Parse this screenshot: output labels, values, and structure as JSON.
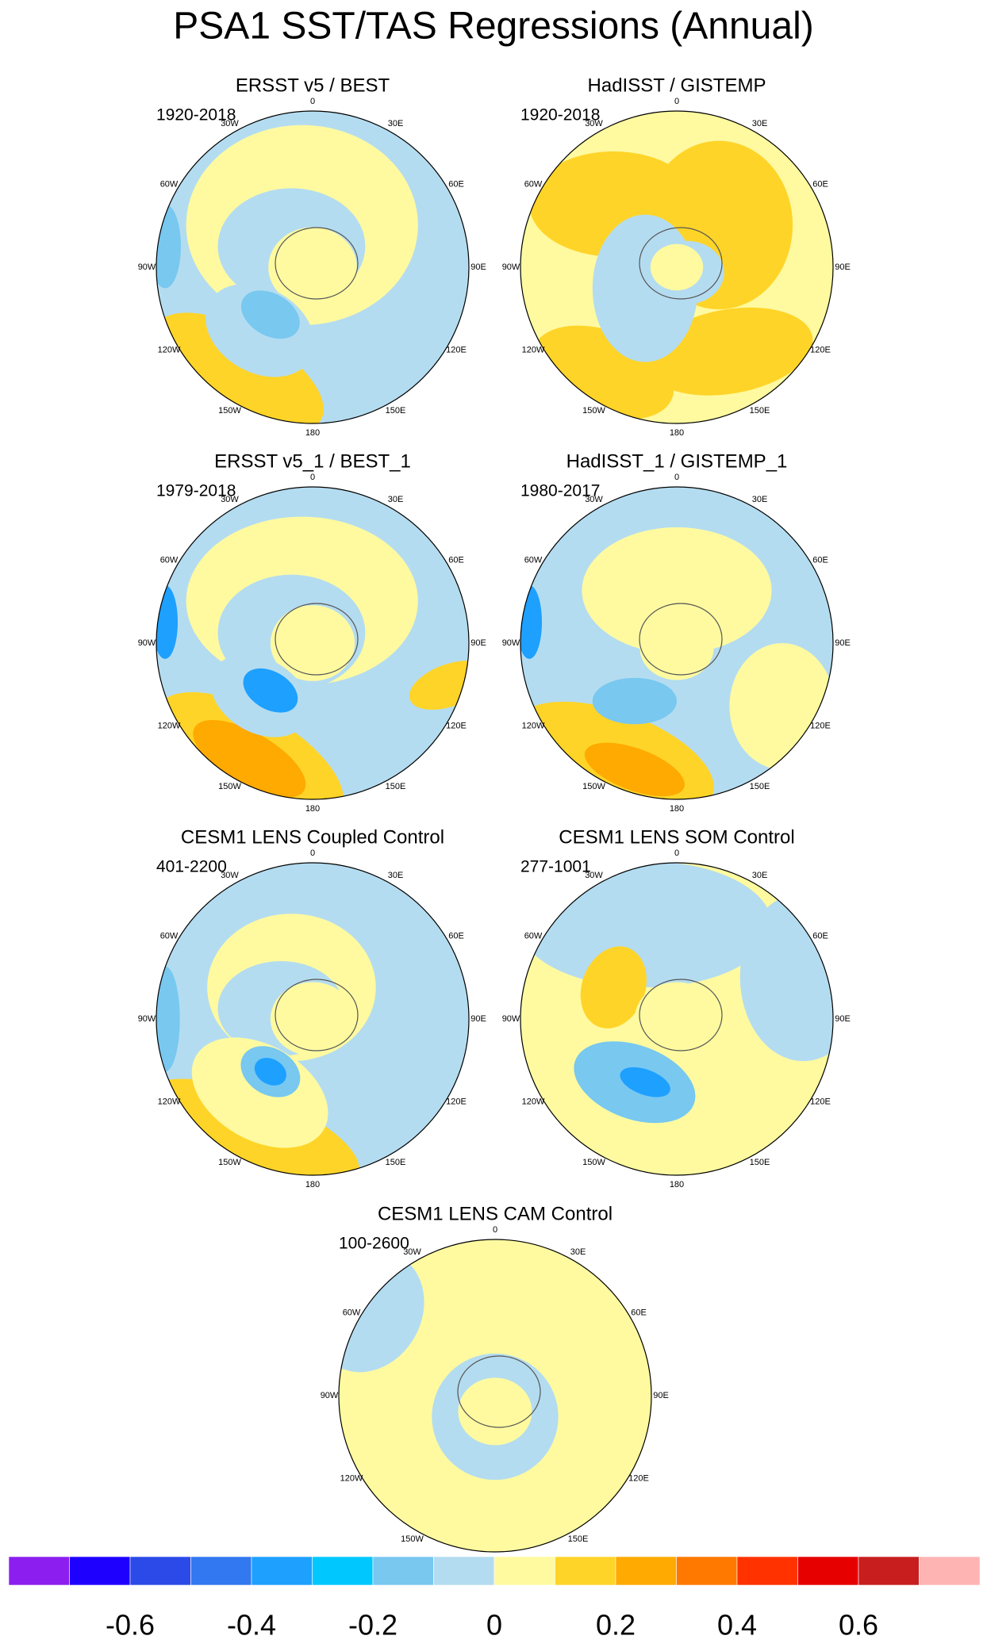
{
  "title": "PSA1 SST/TAS Regressions (Annual)",
  "lon_labels": [
    "0",
    "30E",
    "60E",
    "90E",
    "120E",
    "150E",
    "180",
    "150W",
    "120W",
    "90W",
    "60W",
    "30W"
  ],
  "panels": [
    {
      "title": "ERSST v5 / BEST",
      "period": "1920-2018"
    },
    {
      "title": "HadISST / GISTEMP",
      "period": "1920-2018"
    },
    {
      "title": "ERSST v5_1 / BEST_1",
      "period": "1979-2018"
    },
    {
      "title": "HadISST_1 / GISTEMP_1",
      "period": "1980-2017"
    },
    {
      "title": "CESM1 LENS Coupled Control",
      "period": "401-2200"
    },
    {
      "title": "CESM1 LENS SOM Control",
      "period": "277-1001"
    },
    {
      "title": "CESM1 LENS CAM Control",
      "period": "100-2600"
    }
  ],
  "colorbar": {
    "colors": [
      "#8c1ef0",
      "#1e00ff",
      "#2c4ae8",
      "#3278f0",
      "#1ea0ff",
      "#00c8ff",
      "#78c8f0",
      "#b4dcf0",
      "#fffaa0",
      "#ffd428",
      "#ffaa00",
      "#ff7800",
      "#ff3200",
      "#e60000",
      "#c81e1e",
      "#ffb4b4"
    ],
    "lim": [
      -0.8,
      0.8
    ],
    "ticks": [
      -0.6,
      -0.4,
      -0.2,
      0,
      0.2,
      0.4,
      0.6
    ]
  }
}
